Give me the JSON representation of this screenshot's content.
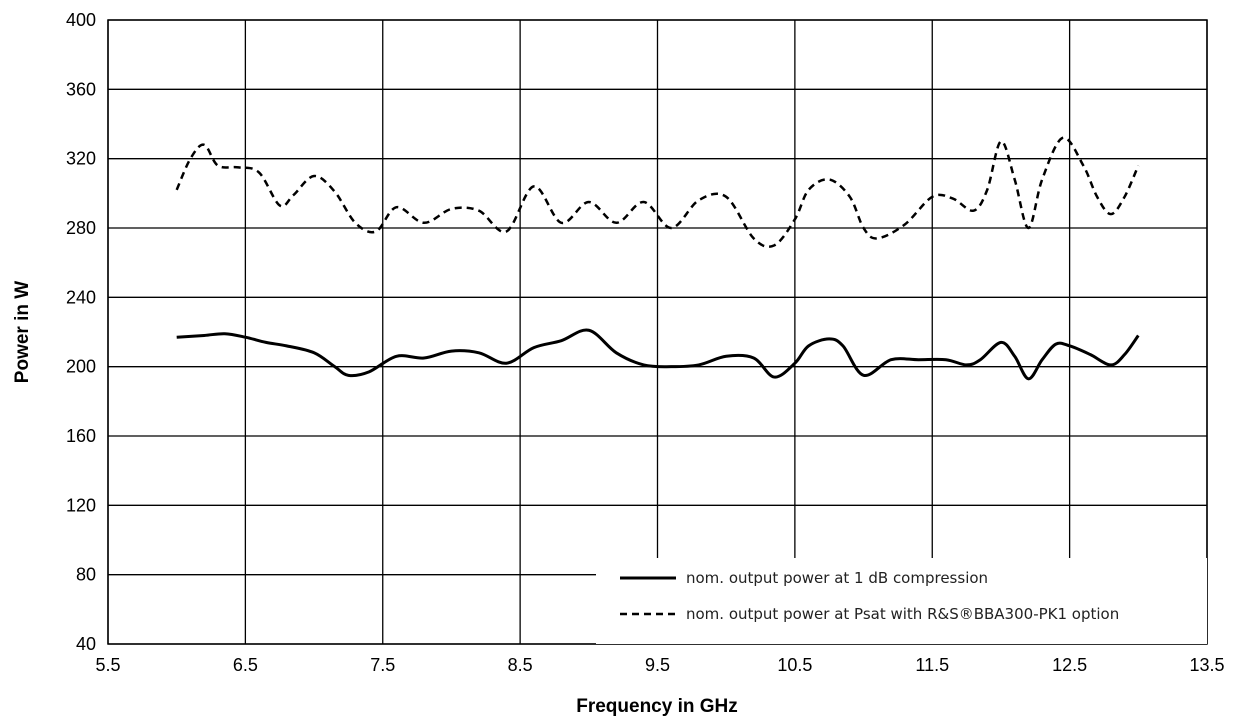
{
  "chart_data": {
    "type": "line",
    "xlabel": "Frequency in GHz",
    "ylabel": "Power in W",
    "xlim": [
      5.5,
      13.5
    ],
    "ylim": [
      40,
      400
    ],
    "xticks": [
      "5.5",
      "6.5",
      "7.5",
      "8.5",
      "9.5",
      "10.5",
      "11.5",
      "12.5",
      "13.5"
    ],
    "yticks": [
      "40",
      "80",
      "120",
      "160",
      "200",
      "240",
      "280",
      "320",
      "360",
      "400"
    ],
    "grid": true,
    "legend_position": "bottom-right",
    "series": [
      {
        "name": "nom. output power at 1 dB compression",
        "style": "solid",
        "color": "#000000",
        "x": [
          6.0,
          6.2,
          6.35,
          6.5,
          6.65,
          6.8,
          7.0,
          7.15,
          7.25,
          7.4,
          7.6,
          7.8,
          8.0,
          8.2,
          8.4,
          8.6,
          8.8,
          9.0,
          9.2,
          9.4,
          9.6,
          9.8,
          10.0,
          10.2,
          10.35,
          10.5,
          10.6,
          10.75,
          10.85,
          11.0,
          11.2,
          11.4,
          11.6,
          11.75,
          11.85,
          12.0,
          12.1,
          12.2,
          12.3,
          12.4,
          12.5,
          12.65,
          12.8,
          12.9,
          13.0
        ],
        "y": [
          217,
          218,
          219,
          217,
          214,
          212,
          208,
          200,
          195,
          197,
          206,
          205,
          209,
          208,
          202,
          211,
          215,
          221,
          208,
          201,
          200,
          201,
          206,
          205,
          194,
          202,
          212,
          216,
          212,
          195,
          204,
          204,
          204,
          201,
          204,
          214,
          206,
          193,
          204,
          213,
          212,
          207,
          201,
          207,
          218
        ]
      },
      {
        "name": "nom. output power at Psat with R&S®BBA300-PK1 option",
        "style": "dashed",
        "color": "#000000",
        "x": [
          6.0,
          6.1,
          6.2,
          6.3,
          6.45,
          6.6,
          6.75,
          6.85,
          7.0,
          7.15,
          7.3,
          7.45,
          7.6,
          7.8,
          8.0,
          8.2,
          8.4,
          8.6,
          8.8,
          9.0,
          9.2,
          9.4,
          9.6,
          9.8,
          10.0,
          10.2,
          10.35,
          10.5,
          10.6,
          10.75,
          10.9,
          11.0,
          11.1,
          11.3,
          11.5,
          11.65,
          11.8,
          11.9,
          12.0,
          12.1,
          12.2,
          12.3,
          12.45,
          12.6,
          12.7,
          12.8,
          12.9,
          13.0
        ],
        "y": [
          302,
          320,
          328,
          316,
          315,
          312,
          293,
          299,
          310,
          301,
          283,
          278,
          292,
          283,
          291,
          290,
          278,
          304,
          283,
          295,
          283,
          295,
          280,
          296,
          298,
          274,
          270,
          285,
          302,
          308,
          298,
          280,
          274,
          282,
          298,
          297,
          290,
          302,
          330,
          308,
          280,
          308,
          332,
          316,
          298,
          288,
          298,
          316
        ]
      }
    ]
  }
}
